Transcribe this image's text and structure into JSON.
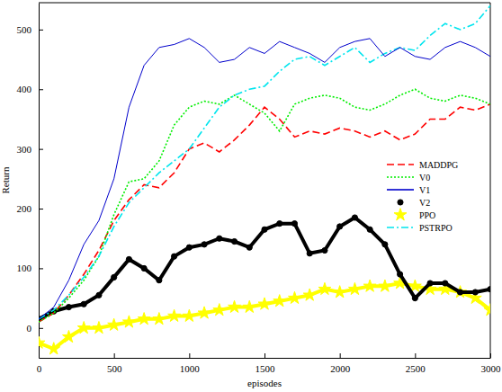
{
  "chart_data": {
    "type": "line",
    "x_label": "episodes",
    "y_label": "Return",
    "xlim": [
      0,
      3000
    ],
    "xticks": [
      0,
      500,
      1000,
      1500,
      2000,
      2500,
      3000
    ],
    "ylim": [
      -50,
      545
    ],
    "yticks": [
      0,
      100,
      200,
      300,
      400,
      500
    ],
    "legend": "right",
    "x": [
      0,
      100,
      200,
      300,
      400,
      500,
      600,
      700,
      800,
      900,
      1000,
      1100,
      1200,
      1300,
      1400,
      1500,
      1600,
      1700,
      1800,
      1900,
      2000,
      2100,
      2200,
      2300,
      2400,
      2500,
      2600,
      2700,
      2800,
      2900,
      3000
    ],
    "series": [
      {
        "name": "MADDPG",
        "color": "#ff0000",
        "line_style": "dashed",
        "values": [
          10,
          25,
          55,
          90,
          130,
          180,
          215,
          240,
          235,
          260,
          300,
          310,
          295,
          315,
          340,
          370,
          350,
          320,
          330,
          325,
          335,
          330,
          320,
          330,
          315,
          325,
          350,
          350,
          370,
          365,
          375
        ]
      },
      {
        "name": "V0",
        "color": "#00ee00",
        "line_style": "dotted",
        "values": [
          10,
          25,
          50,
          80,
          120,
          190,
          245,
          250,
          280,
          340,
          370,
          380,
          375,
          390,
          375,
          360,
          330,
          375,
          385,
          390,
          385,
          370,
          365,
          375,
          390,
          400,
          385,
          380,
          390,
          385,
          375
        ]
      },
      {
        "name": "V1",
        "color": "#0000cc",
        "line_style": "solid",
        "values": [
          15,
          35,
          80,
          140,
          180,
          250,
          370,
          440,
          470,
          475,
          485,
          470,
          445,
          450,
          470,
          460,
          480,
          470,
          460,
          445,
          470,
          480,
          485,
          455,
          470,
          455,
          450,
          470,
          480,
          470,
          455
        ]
      },
      {
        "name": "V2",
        "color": "#000000",
        "line_style": "solid",
        "marker": "circle",
        "values": [
          15,
          28,
          35,
          40,
          55,
          85,
          115,
          100,
          80,
          120,
          135,
          140,
          150,
          145,
          135,
          165,
          175,
          175,
          125,
          130,
          170,
          185,
          165,
          140,
          90,
          50,
          75,
          75,
          60,
          60,
          65
        ]
      },
      {
        "name": "PPO",
        "color": "#ffff00",
        "line_style": "solid",
        "marker": "star",
        "values": [
          -25,
          -35,
          -15,
          0,
          0,
          5,
          10,
          15,
          15,
          20,
          20,
          25,
          30,
          35,
          35,
          40,
          45,
          50,
          55,
          65,
          60,
          65,
          70,
          70,
          75,
          70,
          65,
          65,
          60,
          50,
          30
        ]
      },
      {
        "name": "PSTRPO",
        "color": "#00e5ee",
        "line_style": "dash-dot",
        "values": [
          15,
          30,
          55,
          85,
          120,
          170,
          210,
          235,
          260,
          280,
          300,
          335,
          370,
          390,
          400,
          405,
          430,
          450,
          455,
          440,
          455,
          470,
          445,
          460,
          470,
          465,
          490,
          510,
          500,
          510,
          540
        ]
      }
    ]
  }
}
